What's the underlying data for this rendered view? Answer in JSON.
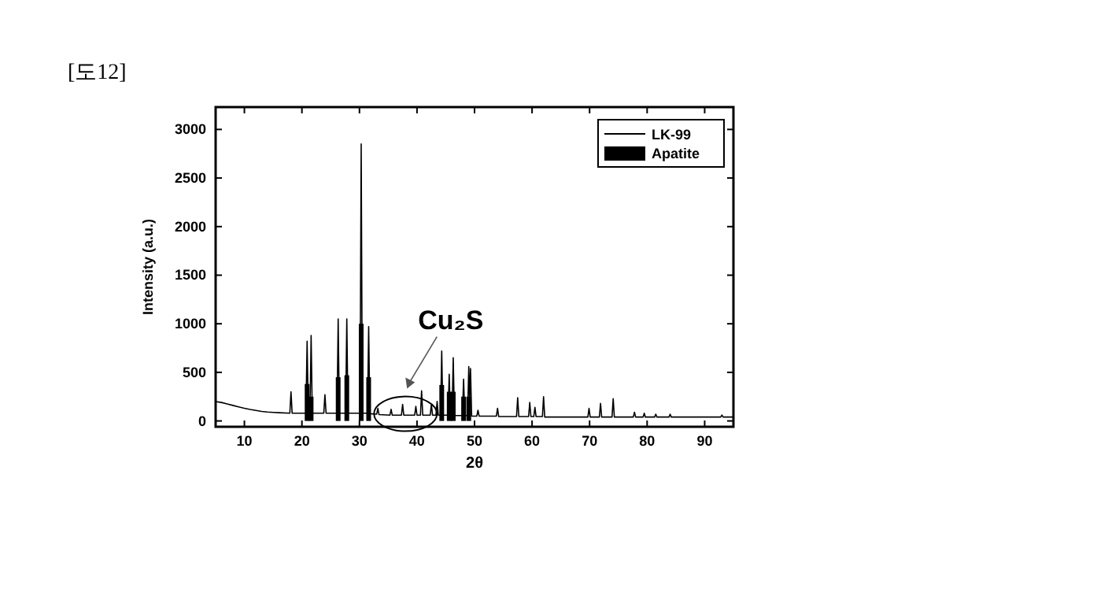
{
  "chart_data": {
    "type": "line",
    "title": "[도12]",
    "xlabel": "2θ",
    "ylabel": "Intensity (a.u.)",
    "xlim": [
      5,
      95
    ],
    "ylim": [
      -60,
      3230
    ],
    "xticks": [
      10,
      20,
      30,
      40,
      50,
      60,
      70,
      80,
      90
    ],
    "yticks": [
      0,
      500,
      1000,
      1500,
      2000,
      2500,
      3000
    ],
    "legend": "top right",
    "annotations": [
      {
        "text": "Cu₂S",
        "x": 38,
        "y": 300
      }
    ],
    "series": [
      {
        "name": "LK-99",
        "color": "#000000",
        "x": [
          5,
          6,
          7,
          8,
          9,
          10,
          11,
          12,
          13,
          14,
          15,
          16,
          17.9,
          18.1,
          18.3,
          20.7,
          20.9,
          21.1,
          21.4,
          21.6,
          21.8,
          23.8,
          24.0,
          24.2,
          26.1,
          26.3,
          26.5,
          27.6,
          27.8,
          28.0,
          30.1,
          30.3,
          30.5,
          31.4,
          31.6,
          31.8,
          33.0,
          33.2,
          33.4,
          35.3,
          35.5,
          35.7,
          37.3,
          37.5,
          37.7,
          39.6,
          39.8,
          40.0,
          40.6,
          40.8,
          41.0,
          42.3,
          42.5,
          42.7,
          43.3,
          43.5,
          43.7,
          44.1,
          44.3,
          44.5,
          45.4,
          45.6,
          45.8,
          46.1,
          46.3,
          46.5,
          47.9,
          48.1,
          48.3,
          48.8,
          49.0,
          49.15,
          49.3,
          49.5,
          50.4,
          50.6,
          50.8,
          53.8,
          54.0,
          54.2,
          57.3,
          57.5,
          57.7,
          59.4,
          59.6,
          59.8,
          60.3,
          60.5,
          60.7,
          61.8,
          62.0,
          62.2,
          69.7,
          69.9,
          70.1,
          71.7,
          71.9,
          72.1,
          73.9,
          74.1,
          74.3,
          77.6,
          77.8,
          78.0,
          79.3,
          79.5,
          79.7,
          81.3,
          81.5,
          81.7,
          83.8,
          84.0,
          84.2,
          92.8,
          93.0,
          93.2,
          95
        ],
        "values": [
          200,
          190,
          175,
          160,
          145,
          130,
          118,
          108,
          98,
          92,
          88,
          85,
          80,
          300,
          80,
          80,
          820,
          80,
          80,
          880,
          80,
          80,
          270,
          80,
          80,
          1050,
          80,
          80,
          1050,
          80,
          80,
          2850,
          80,
          80,
          970,
          75,
          70,
          130,
          65,
          60,
          120,
          60,
          60,
          170,
          60,
          60,
          150,
          60,
          60,
          310,
          60,
          60,
          170,
          60,
          60,
          200,
          60,
          60,
          720,
          60,
          60,
          480,
          60,
          60,
          650,
          55,
          55,
          430,
          55,
          55,
          560,
          200,
          540,
          50,
          50,
          110,
          50,
          50,
          130,
          45,
          45,
          240,
          45,
          45,
          190,
          45,
          45,
          140,
          45,
          45,
          250,
          40,
          40,
          130,
          40,
          40,
          180,
          40,
          40,
          230,
          40,
          40,
          90,
          40,
          40,
          80,
          40,
          40,
          70,
          40,
          40,
          70,
          40,
          40,
          60,
          40,
          40
        ]
      },
      {
        "name": "Apatite",
        "type": "bar",
        "color": "#000000",
        "x": [
          20.9,
          21.6,
          26.3,
          27.8,
          30.3,
          31.6,
          44.3,
          45.6,
          46.3,
          48.1,
          49.0
        ],
        "values": [
          380,
          250,
          450,
          470,
          1000,
          450,
          370,
          300,
          300,
          250,
          250
        ]
      }
    ]
  }
}
